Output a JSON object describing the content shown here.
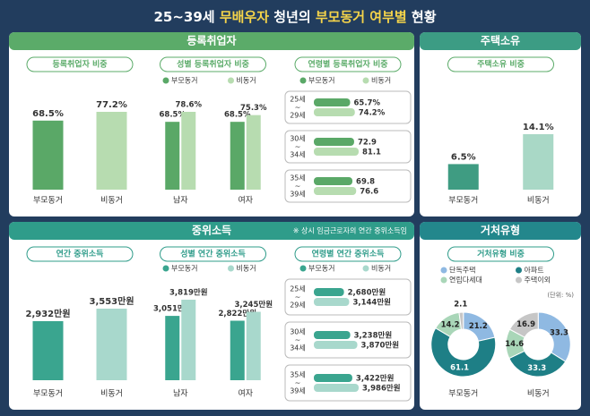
{
  "title": [
    {
      "text": "25~39세 ",
      "highlight": false
    },
    {
      "text": "무배우자",
      "highlight": true
    },
    {
      "text": " 청년의 ",
      "highlight": false
    },
    {
      "text": "부모동거 여부별",
      "highlight": true
    },
    {
      "text": " 현황",
      "highlight": false
    }
  ],
  "sections": [
    {
      "title": "등록취업자"
    },
    {
      "title": "주택소유"
    },
    {
      "title": "중위소득",
      "note": "※ 상시 임금근로자의 연간 중위소득임"
    },
    {
      "title": "거처유형"
    }
  ],
  "chart_data": [
    {
      "type": "bar",
      "title": "등록취업자 비중",
      "categories": [
        "부모동거",
        "비동거"
      ],
      "values": [
        68.5,
        77.2
      ],
      "value_labels": [
        "68.5%",
        "77.2%"
      ],
      "colors": [
        "#5aa867",
        "#b7dcb0"
      ]
    },
    {
      "type": "bar",
      "title": "성별 등록취업자 비중",
      "categories": [
        "남자",
        "여자"
      ],
      "series": [
        {
          "name": "부모동거",
          "color": "#5aa867",
          "values": [
            68.5,
            68.5
          ],
          "value_labels": [
            "68.5%",
            "68.5%"
          ]
        },
        {
          "name": "비동거",
          "color": "#b7dcb0",
          "values": [
            78.6,
            75.3
          ],
          "value_labels": [
            "78.6%",
            "75.3%"
          ]
        }
      ]
    },
    {
      "type": "hbar",
      "title": "연령별 등록취업자 비중",
      "categories": [
        {
          "from": "25세",
          "sep": "~",
          "to": "29세"
        },
        {
          "from": "30세",
          "sep": "~",
          "to": "34세"
        },
        {
          "from": "35세",
          "sep": "~",
          "to": "39세"
        }
      ],
      "series": [
        {
          "name": "부모동거",
          "color": "#5aa867",
          "values": [
            65.7,
            72.9,
            69.8
          ],
          "value_labels": [
            "65.7%",
            "72.9",
            "69.8"
          ]
        },
        {
          "name": "비동거",
          "color": "#b7dcb0",
          "values": [
            74.2,
            81.1,
            76.6
          ],
          "value_labels": [
            "74.2%",
            "81.1",
            "76.6"
          ]
        }
      ]
    },
    {
      "type": "bar",
      "title": "주택소유 비중",
      "categories": [
        "부모동거",
        "비동거"
      ],
      "values": [
        6.5,
        14.1
      ],
      "value_labels": [
        "6.5%",
        "14.1%"
      ],
      "colors": [
        "#3f9c82",
        "#a9d8c6"
      ]
    },
    {
      "type": "bar",
      "title": "연간 중위소득",
      "categories": [
        "부모동거",
        "비동거"
      ],
      "values": [
        2932,
        3553
      ],
      "value_labels": [
        "2,932만원",
        "3,553만원"
      ],
      "colors": [
        "#3aa58f",
        "#a8d8cc"
      ]
    },
    {
      "type": "bar",
      "title": "성별 연간 중위소득",
      "categories": [
        "남자",
        "여자"
      ],
      "series": [
        {
          "name": "부모동거",
          "color": "#3aa58f",
          "values": [
            3051,
            2822
          ],
          "value_labels": [
            "3,051만원",
            "2,822만원"
          ]
        },
        {
          "name": "비동거",
          "color": "#a8d8cc",
          "values": [
            3819,
            3245
          ],
          "value_labels": [
            "3,819만원",
            "3,245만원"
          ]
        }
      ]
    },
    {
      "type": "hbar",
      "title": "연령별 연간 중위소득",
      "categories": [
        {
          "from": "25세",
          "sep": "~",
          "to": "29세"
        },
        {
          "from": "30세",
          "sep": "~",
          "to": "34세"
        },
        {
          "from": "35세",
          "sep": "~",
          "to": "39세"
        }
      ],
      "series": [
        {
          "name": "부모동거",
          "color": "#3aa58f",
          "values": [
            2680,
            3238,
            3422
          ],
          "value_labels": [
            "2,680만원",
            "3,238만원",
            "3,422만원"
          ]
        },
        {
          "name": "비동거",
          "color": "#a8d8cc",
          "values": [
            3144,
            3870,
            3986
          ],
          "value_labels": [
            "3,144만원",
            "3,870만원",
            "3,986만원"
          ]
        }
      ]
    },
    {
      "type": "donut",
      "title": "거처유형 비중",
      "unit": "(단위: %)",
      "categories": [
        "부모동거",
        "비동거"
      ],
      "series": [
        {
          "name": "단독주택",
          "color": "#8fb9e2",
          "values": [
            21.2,
            33.3
          ]
        },
        {
          "name": "아파트",
          "color": "#1e7f86",
          "values": [
            61.1,
            33.3
          ]
        },
        {
          "name": "연립다세대",
          "color": "#a9d6b8",
          "values": [
            14.2,
            14.6
          ]
        },
        {
          "name": "주택이외",
          "color": "#c6c6c6",
          "values": [
            2.1,
            16.9
          ]
        }
      ]
    }
  ]
}
